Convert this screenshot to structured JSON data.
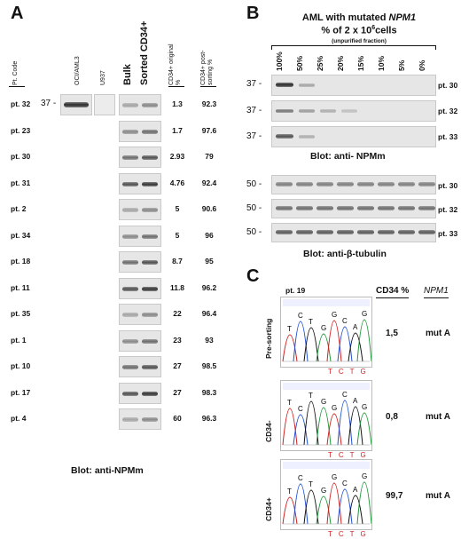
{
  "panel_a": {
    "letter": "A",
    "headers": {
      "pt_code": "Pt. Code",
      "oci": "OCI/AML3",
      "u937": "U937",
      "bulk": "Bulk",
      "sorted": "Sorted CD34+",
      "orig": "CD34+ original %",
      "post": "CD34+ post-sorting %"
    },
    "marker": "37 -",
    "rows": [
      {
        "pt": "pt. 32",
        "orig": "1.3",
        "post": "92.3"
      },
      {
        "pt": "pt. 23",
        "orig": "1.7",
        "post": "97.6"
      },
      {
        "pt": "pt. 30",
        "orig": "2.93",
        "post": "79"
      },
      {
        "pt": "pt. 31",
        "orig": "4.76",
        "post": "92.4"
      },
      {
        "pt": "pt. 2",
        "orig": "5",
        "post": "90.6"
      },
      {
        "pt": "pt. 34",
        "orig": "5",
        "post": "96"
      },
      {
        "pt": "pt. 18",
        "orig": "8.7",
        "post": "95"
      },
      {
        "pt": "pt. 11",
        "orig": "11.8",
        "post": "96.2"
      },
      {
        "pt": "pt. 35",
        "orig": "22",
        "post": "96.4"
      },
      {
        "pt": "pt. 1",
        "orig": "23",
        "post": "93"
      },
      {
        "pt": "pt. 10",
        "orig": "27",
        "post": "98.5"
      },
      {
        "pt": "pt. 17",
        "orig": "27",
        "post": "98.3"
      },
      {
        "pt": "pt. 4",
        "orig": "60",
        "post": "96.3"
      }
    ],
    "caption": "Blot: anti-NPMm"
  },
  "panel_b": {
    "letter": "B",
    "title_prefix": "AML with mutated ",
    "title_gene": "NPM1",
    "subtitle_pre": "% of 2 x 10",
    "subtitle_sup": "6",
    "subtitle_post": "cells",
    "note": "(unpurified fraction)",
    "dilutions": [
      "100%",
      "50%",
      "25%",
      "20%",
      "15%",
      "10%",
      "5%",
      "0%"
    ],
    "marker37": "37 -",
    "marker50": "50 -",
    "patients": [
      "pt. 30",
      "pt. 32",
      "pt. 33"
    ],
    "caption_npm": "Blot: anti- NPMm",
    "caption_tub": "Blot: anti-β-tubulin"
  },
  "panel_c": {
    "letter": "C",
    "patient": "pt. 19",
    "col_cd34": "CD34 %",
    "col_npm1": "NPM1",
    "rows": [
      {
        "label": "Pre-sorting",
        "cd34": "1,5",
        "npm1": "mut A"
      },
      {
        "label": "CD34-",
        "cd34": "0,8",
        "npm1": "mut A"
      },
      {
        "label": "CD34+",
        "cd34": "99,7",
        "npm1": "mut A"
      }
    ],
    "bases_top": [
      "T",
      "C",
      "T",
      "G",
      "G",
      "C",
      "A",
      "G"
    ],
    "bases_mut": [
      "T",
      "C",
      "T",
      "G"
    ]
  }
}
